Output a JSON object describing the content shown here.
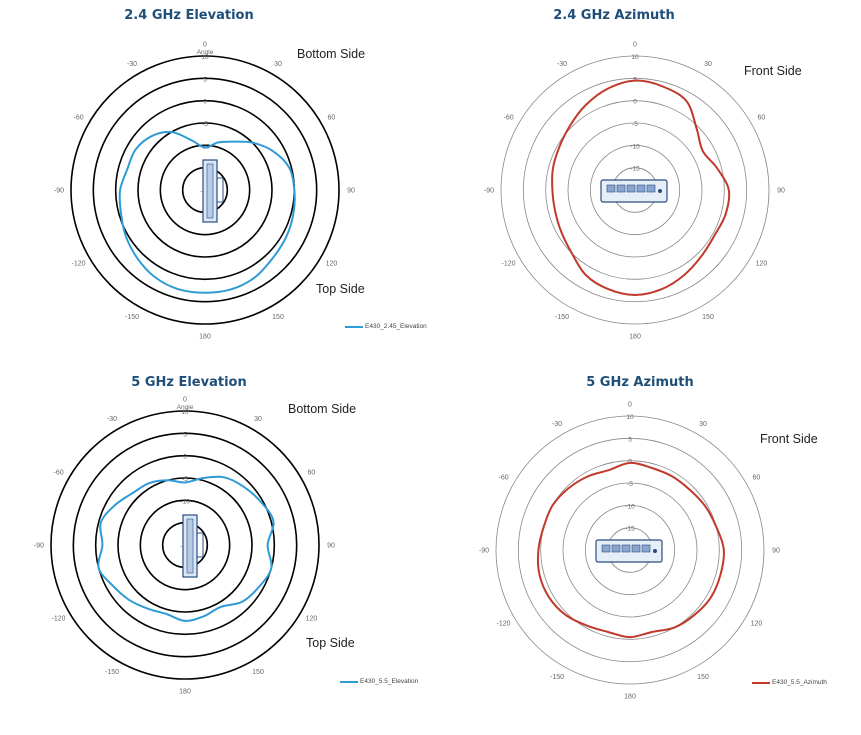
{
  "chart_data": [
    {
      "type": "polar-line",
      "title": "2.4 GHz Elevation",
      "angle_label": "Angle",
      "annotations": [
        "Bottom Side",
        "Top Side"
      ],
      "radial_ticks": [
        "10",
        "5",
        "0",
        "-5",
        "-10",
        "-15",
        "-20"
      ],
      "angle_ticks": [
        "0",
        "30",
        "60",
        "90",
        "120",
        "150",
        "180",
        "-150",
        "-120",
        "-90",
        "-60",
        "-30"
      ],
      "rlim": [
        -20,
        10
      ],
      "color": "#2e9bd6",
      "series": [
        {
          "name": "E430_2.45_Elevation",
          "angles": [
            0,
            15,
            30,
            45,
            60,
            75,
            90,
            105,
            120,
            135,
            150,
            165,
            180,
            -165,
            -150,
            -135,
            -120,
            -105,
            -90,
            -75,
            -60,
            -45,
            -30,
            -15
          ],
          "values": [
            -10.5,
            -9,
            -7.5,
            -5,
            -2.5,
            -0.5,
            0,
            0.5,
            1,
            1.5,
            2.5,
            3,
            3,
            3,
            2.5,
            1.5,
            0.5,
            -0.5,
            -1,
            -2,
            -2,
            -3,
            -5,
            -8.5
          ]
        }
      ]
    },
    {
      "type": "polar-line",
      "title": "2.4 GHz Azimuth",
      "annotations": [
        "Front Side"
      ],
      "radial_ticks": [
        "10",
        "5",
        "0",
        "-5",
        "-10",
        "-15",
        "-20"
      ],
      "angle_ticks": [
        "0",
        "30",
        "60",
        "90",
        "120",
        "150",
        "180",
        "-150",
        "-120",
        "-90",
        "-60",
        "-30"
      ],
      "rlim": [
        -20,
        10
      ],
      "color": "#c0392b",
      "series": [
        {
          "name": "",
          "angles": [
            0,
            15,
            30,
            45,
            60,
            75,
            90,
            105,
            120,
            135,
            150,
            165,
            180,
            -165,
            -150,
            -135,
            -120,
            -105,
            -90,
            -75,
            -60,
            -45,
            -30,
            -15
          ],
          "values": [
            4.5,
            4,
            3,
            -0.5,
            -2.5,
            -1,
            1,
            1,
            0.5,
            1,
            2,
            3,
            3.5,
            3,
            2,
            0,
            -1,
            -1.5,
            -1.5,
            -1,
            -0.5,
            0.5,
            2,
            3.5
          ]
        }
      ]
    },
    {
      "type": "polar-line",
      "title": "5 GHz Elevation",
      "angle_label": "Angle",
      "annotations": [
        "Bottom Side",
        "Top Side"
      ],
      "radial_ticks": [
        "10",
        "5",
        "0",
        "-5",
        "-10",
        "-15",
        "-20"
      ],
      "angle_ticks": [
        "0",
        "30",
        "60",
        "90",
        "120",
        "150",
        "180",
        "-150",
        "-120",
        "-90",
        "-60",
        "-30"
      ],
      "rlim": [
        -20,
        10
      ],
      "color": "#2e9bd6",
      "series": [
        {
          "name": "E430_5.5_Elevation",
          "angles": [
            0,
            15,
            30,
            45,
            60,
            75,
            90,
            105,
            120,
            135,
            150,
            165,
            180,
            -165,
            -150,
            -135,
            -120,
            -105,
            -90,
            -75,
            -60,
            -45,
            -30,
            -15
          ],
          "values": [
            -6,
            -4.5,
            -2.5,
            -1.5,
            -0.5,
            0.5,
            -1.5,
            0,
            -1,
            -2,
            -4,
            -3.5,
            -3,
            -4,
            -3.5,
            -2.5,
            -1.5,
            0,
            -1.5,
            -0.5,
            -2,
            -3.5,
            -4,
            -5
          ]
        }
      ]
    },
    {
      "type": "polar-line",
      "title": "5 GHz Azimuth",
      "annotations": [
        "Front Side"
      ],
      "radial_ticks": [
        "10",
        "5",
        "0",
        "-5",
        "-10",
        "-15",
        "-20"
      ],
      "angle_ticks": [
        "0",
        "30",
        "60",
        "90",
        "120",
        "150",
        "180",
        "-150",
        "-120",
        "-90",
        "-60",
        "-30"
      ],
      "rlim": [
        -20,
        10
      ],
      "color": "#c0392b",
      "series": [
        {
          "name": "E430_5.5_Azimuth",
          "angles": [
            0,
            15,
            30,
            45,
            60,
            75,
            90,
            105,
            120,
            135,
            150,
            165,
            180,
            -165,
            -150,
            -135,
            -120,
            -105,
            -90,
            -75,
            -60,
            -45,
            -30,
            -15
          ],
          "values": [
            -0.5,
            -1,
            -1,
            -1,
            -0.5,
            0,
            1,
            1,
            1,
            0.5,
            0,
            -1,
            -0.5,
            -1,
            -0.5,
            0.5,
            1,
            1,
            0.5,
            0,
            0,
            -0.5,
            -1,
            -1.5
          ]
        }
      ]
    }
  ]
}
